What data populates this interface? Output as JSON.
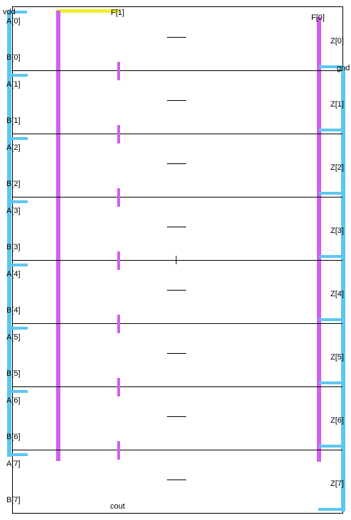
{
  "labels": {
    "vdd": "vdd",
    "gnd": "gnd",
    "f1": "F[1]",
    "f0": "F[0]",
    "cout": "cout"
  },
  "colors": {
    "power_rail": "#5bc8f0",
    "signal_bus": "#d060f0",
    "highlight": "#f0f030",
    "outline": "#000000"
  },
  "inputs_a": [
    "A[0]",
    "A[1]",
    "A[2]",
    "A[3]",
    "A[4]",
    "A[5]",
    "A[6]",
    "A[7]"
  ],
  "inputs_b": [
    "B[0]",
    "B[1]",
    "B[2]",
    "B[3]",
    "B[4]",
    "B[5]",
    "B[6]",
    "B[7]"
  ],
  "outputs_z": [
    "Z[0]",
    "Z[1]",
    "Z[2]",
    "Z[3]",
    "Z[4]",
    "Z[5]",
    "Z[6]",
    "Z[7]"
  ]
}
